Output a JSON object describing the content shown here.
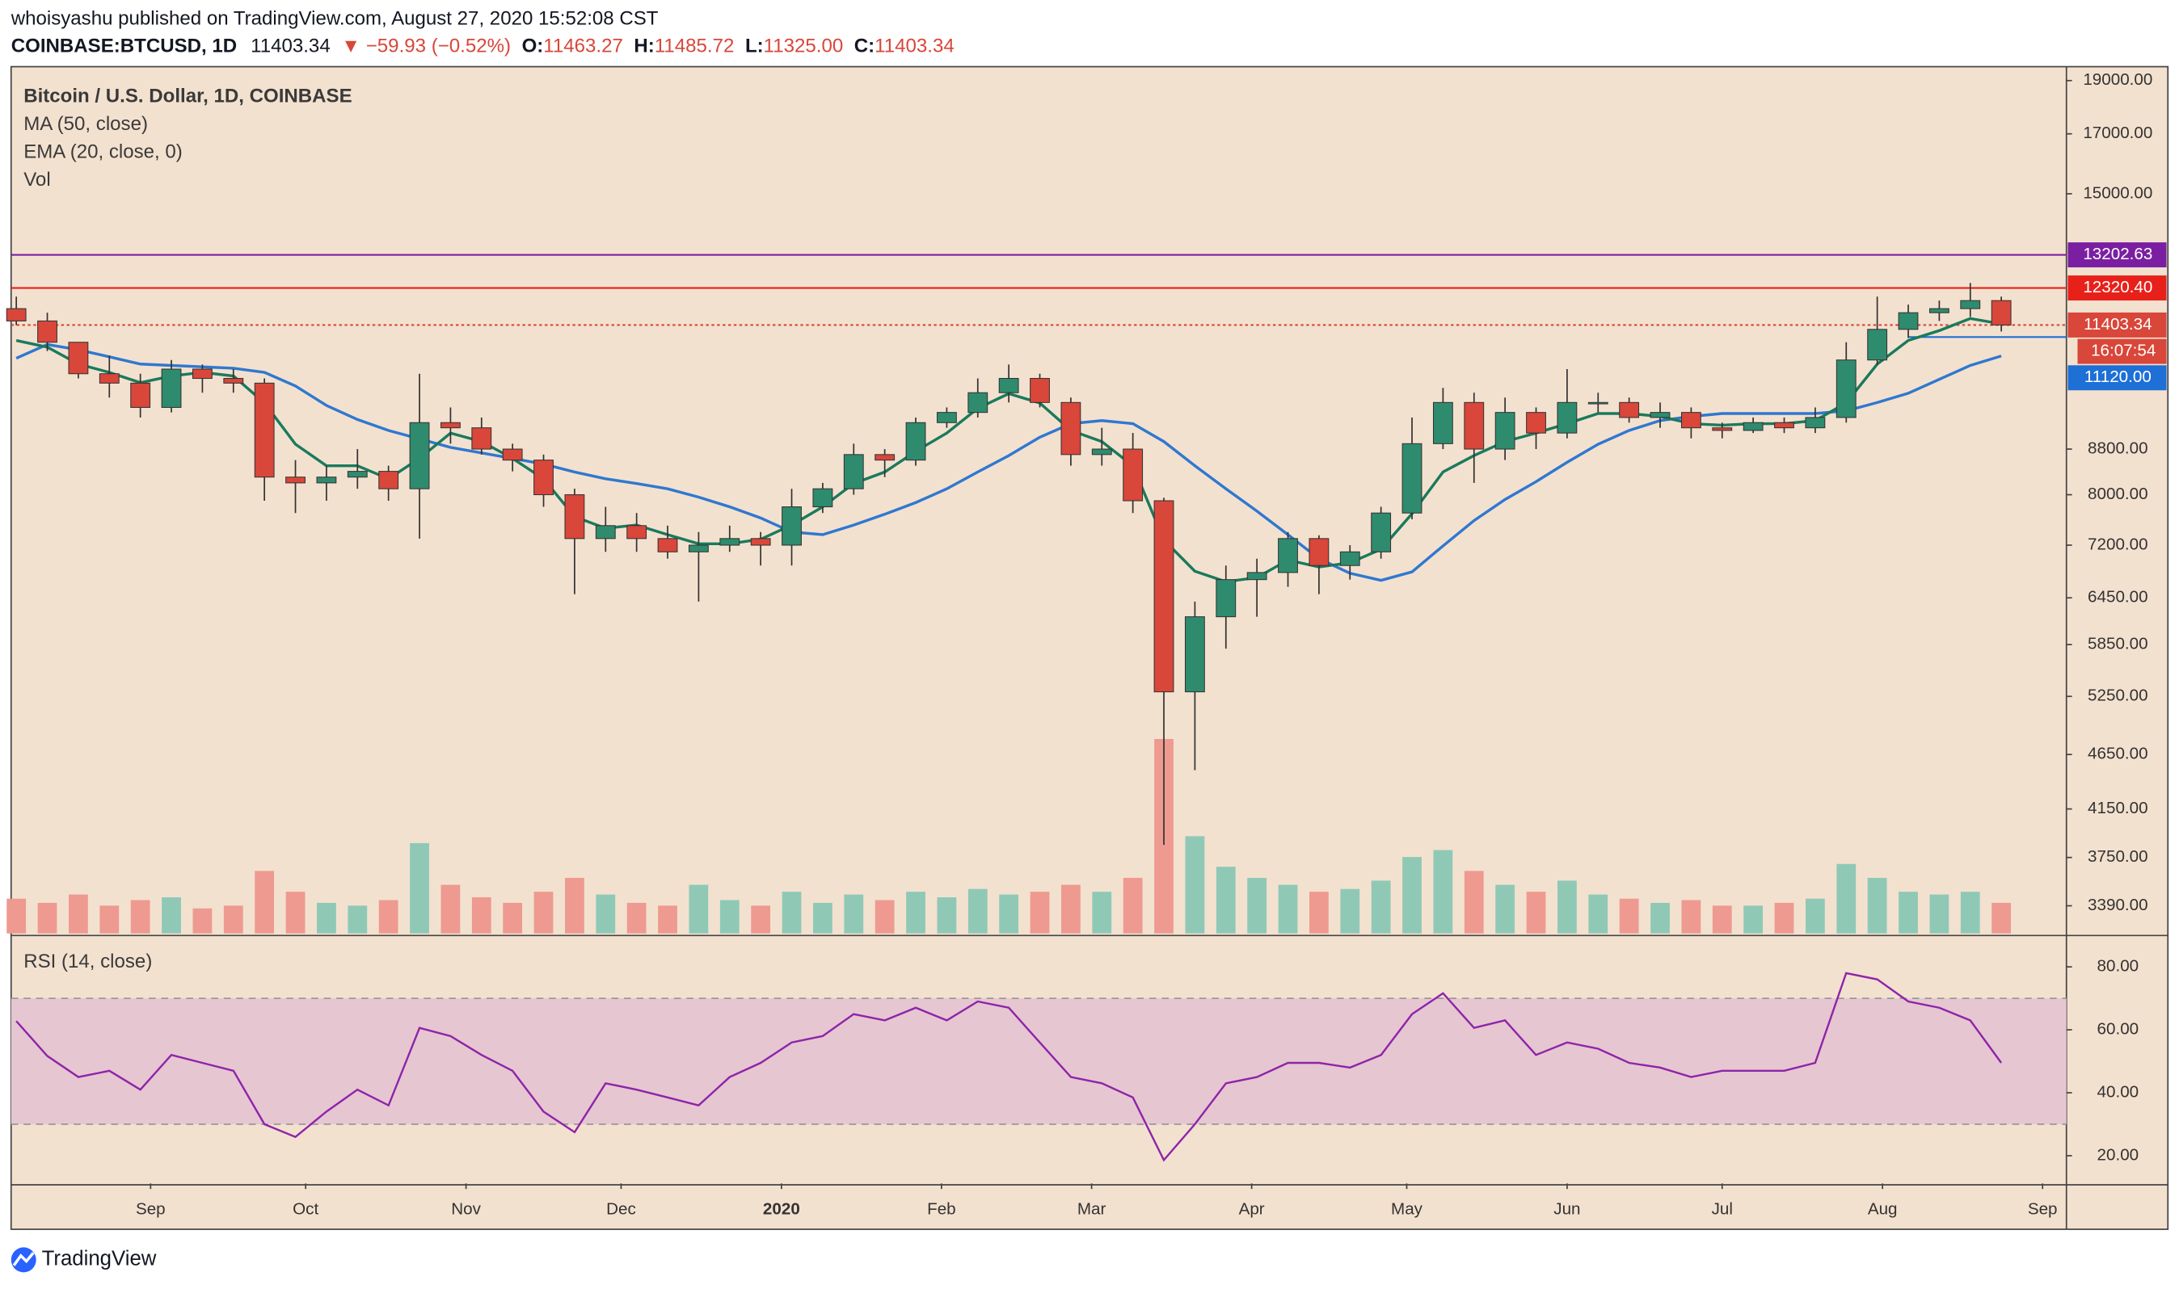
{
  "header": {
    "published": "whoisyashu published on TradingView.com, August 27, 2020 15:52:08 CST",
    "symbol": "COINBASE:BTCUSD, 1D",
    "last": "11403.34",
    "change": "▼ −59.93 (−0.52%)",
    "ohlc": [
      {
        "label": "O:",
        "value": "11463.27"
      },
      {
        "label": "H:",
        "value": "11485.72"
      },
      {
        "label": "L:",
        "value": "11325.00"
      },
      {
        "label": "C:",
        "value": "11403.34"
      }
    ]
  },
  "chart_data": {
    "type": "candlestick",
    "title": "Bitcoin / U.S. Dollar, 1D, COINBASE",
    "log_scale": true,
    "ylim": [
      3200,
      19560
    ],
    "yticks": [
      {
        "value": 19000,
        "label": "19000.00"
      },
      {
        "value": 17000,
        "label": "17000.00"
      },
      {
        "value": 15000,
        "label": "15000.00"
      },
      {
        "value": 8800,
        "label": "8800.00"
      },
      {
        "value": 8000,
        "label": "8000.00"
      },
      {
        "value": 7200,
        "label": "7200.00"
      },
      {
        "value": 6450,
        "label": "6450.00"
      },
      {
        "value": 5850,
        "label": "5850.00"
      },
      {
        "value": 5250,
        "label": "5250.00"
      },
      {
        "value": 4650,
        "label": "4650.00"
      },
      {
        "value": 4150,
        "label": "4150.00"
      },
      {
        "value": 3750,
        "label": "3750.00"
      },
      {
        "value": 3390,
        "label": "3390.00"
      }
    ],
    "xlim": [
      -0.167,
      66.1
    ],
    "xticks": [
      {
        "value": 4.33,
        "label": "Sep"
      },
      {
        "value": 9.33,
        "label": "Oct"
      },
      {
        "value": 14.5,
        "label": "Nov"
      },
      {
        "value": 19.5,
        "label": "Dec"
      },
      {
        "value": 24.67,
        "label": "2020"
      },
      {
        "value": 29.83,
        "label": "Feb"
      },
      {
        "value": 34.67,
        "label": "Mar"
      },
      {
        "value": 39.83,
        "label": "Apr"
      },
      {
        "value": 44.83,
        "label": "May"
      },
      {
        "value": 50,
        "label": "Jun"
      },
      {
        "value": 55,
        "label": "Jul"
      },
      {
        "value": 60.17,
        "label": "Aug"
      },
      {
        "value": 65.33,
        "label": "Sep"
      }
    ],
    "up_color": "#2e8b6e",
    "down_color": "#d9463a",
    "volume_up_color": "#8fc9b6",
    "volume_down_color": "#ee9a90",
    "candles": {
      "open": [
        11800,
        11500,
        11000,
        10300,
        10100,
        9600,
        10400,
        10200,
        10100,
        8300,
        8200,
        8300,
        8400,
        8100,
        9300,
        9200,
        8800,
        8600,
        8000,
        7300,
        7500,
        7300,
        7100,
        7200,
        7300,
        7200,
        7800,
        8100,
        8700,
        8600,
        9300,
        9500,
        9900,
        10200,
        9700,
        8700,
        8800,
        7900,
        5300,
        6200,
        6700,
        6800,
        7300,
        6900,
        7100,
        7700,
        8900,
        9700,
        8800,
        9500,
        9100,
        9700,
        9700,
        9400,
        9500,
        9200,
        9150,
        9300,
        9200,
        9400,
        10600,
        11300,
        11700,
        11800,
        12000
      ],
      "high": [
        12100,
        11700,
        11000,
        10700,
        10300,
        10600,
        10500,
        10400,
        10200,
        8600,
        8500,
        8800,
        8500,
        10300,
        9600,
        9400,
        8900,
        8700,
        8100,
        7800,
        7700,
        7500,
        7400,
        7500,
        7400,
        8100,
        8200,
        8900,
        8800,
        9400,
        9600,
        10200,
        10500,
        10300,
        9800,
        9200,
        9100,
        7950,
        6400,
        6900,
        7000,
        7400,
        7350,
        7200,
        7800,
        9400,
        10000,
        9900,
        9800,
        9600,
        10400,
        9900,
        9800,
        9700,
        9600,
        9300,
        9400,
        9400,
        9600,
        11000,
        12100,
        11900,
        12000,
        12450,
        12100
      ],
      "low": [
        11400,
        10800,
        10200,
        9800,
        9400,
        9500,
        9900,
        9900,
        7900,
        7700,
        7900,
        8100,
        7900,
        7300,
        8900,
        8700,
        8400,
        7800,
        6500,
        7100,
        7100,
        7000,
        6400,
        7100,
        6900,
        6900,
        7700,
        8000,
        8300,
        8500,
        9200,
        9400,
        9700,
        9600,
        8500,
        8500,
        7700,
        3850,
        4500,
        5800,
        6200,
        6600,
        6500,
        6700,
        7000,
        7600,
        8800,
        8200,
        8600,
        8800,
        9000,
        9500,
        9300,
        9200,
        9000,
        9000,
        9100,
        9100,
        9100,
        9300,
        10500,
        11100,
        11500,
        11600,
        11250
      ],
      "close": [
        11500,
        11000,
        10300,
        10100,
        9600,
        10400,
        10200,
        10100,
        8300,
        8200,
        8300,
        8400,
        8100,
        9300,
        9200,
        8800,
        8600,
        8000,
        7300,
        7500,
        7300,
        7100,
        7200,
        7300,
        7200,
        7800,
        8100,
        8700,
        8600,
        9300,
        9500,
        9900,
        10200,
        9700,
        8700,
        8800,
        7900,
        5300,
        6200,
        6700,
        6800,
        7300,
        6900,
        7100,
        7700,
        8900,
        9700,
        8800,
        9500,
        9100,
        9700,
        9700,
        9400,
        9500,
        9200,
        9150,
        9300,
        9200,
        9400,
        10600,
        11300,
        11700,
        11800,
        12000,
        11403.34
      ]
    },
    "series": [
      {
        "name": "MA (50, close)",
        "color": "#2f78d0",
        "values": [
          10640,
          10950,
          10830,
          10670,
          10510,
          10480,
          10450,
          10420,
          10330,
          10040,
          9640,
          9360,
          9150,
          8990,
          8830,
          8730,
          8630,
          8530,
          8390,
          8270,
          8190,
          8100,
          7960,
          7800,
          7620,
          7400,
          7360,
          7510,
          7680,
          7870,
          8100,
          8390,
          8680,
          9020,
          9280,
          9340,
          9280,
          8940,
          8500,
          8100,
          7730,
          7360,
          7000,
          6790,
          6690,
          6810,
          7190,
          7580,
          7920,
          8220,
          8560,
          8890,
          9150,
          9340,
          9420,
          9480,
          9480,
          9480,
          9480,
          9530,
          9700,
          9890,
          10180,
          10480,
          10690
        ]
      },
      {
        "name": "EMA (20, close, 0)",
        "color": "#1a7a5c",
        "values": [
          11040,
          10890,
          10510,
          10330,
          10110,
          10250,
          10330,
          10250,
          9690,
          8890,
          8500,
          8500,
          8270,
          8630,
          9100,
          8940,
          8630,
          8270,
          7640,
          7460,
          7510,
          7360,
          7220,
          7220,
          7290,
          7510,
          7800,
          8190,
          8390,
          8760,
          9100,
          9580,
          9880,
          9690,
          9150,
          8940,
          8500,
          7280,
          6820,
          6670,
          6730,
          6980,
          6880,
          6940,
          7140,
          7690,
          8390,
          8680,
          8940,
          9100,
          9280,
          9480,
          9480,
          9420,
          9280,
          9250,
          9280,
          9280,
          9340,
          9690,
          10510,
          11040,
          11270,
          11560,
          11430
        ]
      }
    ],
    "volume": {
      "name": "Vol",
      "ylim": [
        0,
        150
      ],
      "values": [
        25,
        22,
        28,
        20,
        24,
        26,
        18,
        20,
        45,
        30,
        22,
        20,
        24,
        65,
        35,
        26,
        22,
        30,
        40,
        28,
        22,
        20,
        35,
        24,
        20,
        30,
        22,
        28,
        24,
        30,
        26,
        32,
        28,
        30,
        35,
        30,
        40,
        140,
        70,
        48,
        40,
        35,
        30,
        32,
        38,
        55,
        60,
        45,
        35,
        30,
        38,
        28,
        25,
        22,
        24,
        20,
        20,
        22,
        25,
        50,
        40,
        30,
        28,
        30,
        22
      ]
    },
    "levels": [
      {
        "value": 13202.63,
        "label": "13202.63",
        "color": "#7b1fa2",
        "style": "solid"
      },
      {
        "value": 12320.4,
        "label": "12320.40",
        "color": "#e8201a",
        "style": "solid"
      },
      {
        "value": 11403.34,
        "label": "11403.34",
        "color": "#d9463a",
        "style": "dotted",
        "countdown": "16:07:54"
      },
      {
        "value": 11120,
        "label": "11120.00",
        "color": "#1e6fd6",
        "style": "short"
      }
    ],
    "rsi": {
      "name": "RSI (14, close)",
      "color": "#8e24aa",
      "ylim": [
        11.2,
        89.3
      ],
      "band": [
        30,
        70
      ],
      "yticks": [
        {
          "value": 80,
          "label": "80.00"
        },
        {
          "value": 60,
          "label": "60.00"
        },
        {
          "value": 40,
          "label": "40.00"
        },
        {
          "value": 20,
          "label": "20.00"
        }
      ],
      "values": [
        62.8,
        51.7,
        45,
        47,
        41,
        52,
        49.5,
        47,
        30,
        26,
        34,
        41,
        36,
        60.6,
        58,
        52,
        47,
        34,
        27.5,
        43,
        41,
        38.5,
        36,
        45,
        49.5,
        56,
        58,
        65,
        63,
        67,
        63,
        69,
        67,
        56,
        45,
        43,
        38.5,
        18.6,
        30,
        43,
        45,
        49.5,
        49.5,
        48,
        52,
        65,
        71.6,
        60.6,
        63,
        52,
        56,
        54,
        49.5,
        48,
        45,
        47,
        47,
        47,
        49.5,
        78,
        76,
        69,
        67,
        63,
        49.5
      ]
    }
  },
  "footer": {
    "brand": "TradingView"
  }
}
